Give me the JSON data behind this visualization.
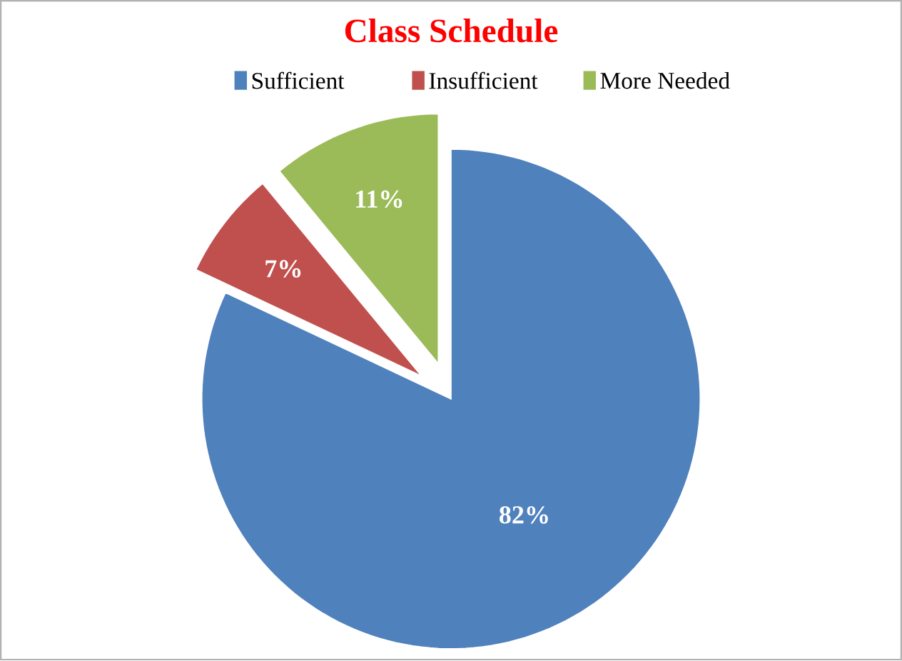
{
  "chart_data": {
    "type": "pie",
    "title": "Class Schedule",
    "categories": [
      "Sufficient",
      "Insufficient",
      "More Needed"
    ],
    "values": [
      82,
      7,
      11
    ],
    "colors": [
      "#4f81bd",
      "#c0504d",
      "#9bbb59"
    ],
    "value_labels": [
      "82%",
      "7%",
      "11%"
    ],
    "legend": "top"
  }
}
